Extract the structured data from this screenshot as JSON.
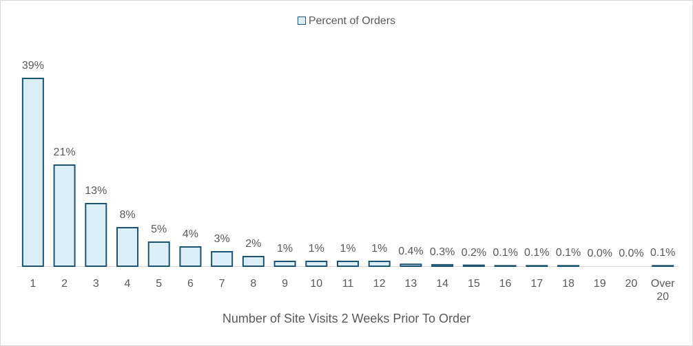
{
  "chart_data": {
    "type": "bar",
    "legend": "Percent of Orders",
    "x_label": "Number of Site Visits 2 Weeks Prior To Order",
    "categories": [
      "1",
      "2",
      "3",
      "4",
      "5",
      "6",
      "7",
      "8",
      "9",
      "10",
      "11",
      "12",
      "13",
      "14",
      "15",
      "16",
      "17",
      "18",
      "19",
      "20",
      "Over 20"
    ],
    "values": [
      39,
      21,
      13,
      8,
      5,
      4,
      3,
      2,
      1,
      1,
      1,
      1,
      0.4,
      0.3,
      0.2,
      0.1,
      0.1,
      0.1,
      0.0,
      0.0,
      0.1
    ],
    "value_labels": [
      "39%",
      "21%",
      "13%",
      "8%",
      "5%",
      "4%",
      "3%",
      "2%",
      "1%",
      "1%",
      "1%",
      "1%",
      "0.4%",
      "0.3%",
      "0.2%",
      "0.1%",
      "0.1%",
      "0.1%",
      "0.0%",
      "0.0%",
      "0.1%"
    ],
    "color": "#daeef7",
    "edge_color": "#1d5370"
  }
}
